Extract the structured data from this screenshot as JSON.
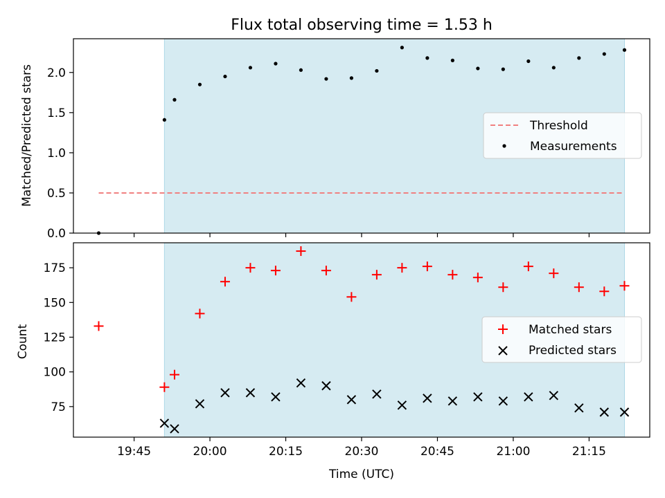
{
  "chart_data": [
    {
      "type": "scatter",
      "title": "Flux total observing time = 1.53 h",
      "ylabel": "Matched/Predicted stars",
      "xlabel": "",
      "xlim": [
        "19:33",
        "21:27"
      ],
      "ylim": [
        0,
        2.42
      ],
      "yticks": [
        "0.0",
        "0.5",
        "1.0",
        "1.5",
        "2.0"
      ],
      "grid": false,
      "legend_position": "center-right",
      "shaded_interval": [
        "19:51",
        "21:22"
      ],
      "shaded_color": "#add8e6",
      "threshold": {
        "name": "Threshold",
        "value": 0.5,
        "x": [
          "19:38",
          "21:22"
        ],
        "color": "#f08080",
        "style": "dashed"
      },
      "series": [
        {
          "name": "Measurements",
          "marker": "dot",
          "color": "#000000",
          "x": [
            "19:38",
            "19:51",
            "19:53",
            "19:58",
            "20:03",
            "20:08",
            "20:13",
            "20:18",
            "20:23",
            "20:28",
            "20:33",
            "20:38",
            "20:43",
            "20:48",
            "20:53",
            "20:58",
            "21:03",
            "21:08",
            "21:13",
            "21:18",
            "21:22"
          ],
          "y": [
            0.0,
            1.41,
            1.66,
            1.85,
            1.95,
            2.06,
            2.11,
            2.03,
            1.92,
            1.93,
            2.02,
            2.31,
            2.18,
            2.15,
            2.05,
            2.04,
            2.14,
            2.06,
            2.18,
            2.23,
            2.28
          ]
        }
      ]
    },
    {
      "type": "scatter",
      "title": "",
      "ylabel": "Count",
      "xlabel": "Time (UTC)",
      "xlim": [
        "19:33",
        "21:27"
      ],
      "ylim": [
        53,
        193
      ],
      "yticks": [
        "75",
        "100",
        "125",
        "150",
        "175"
      ],
      "xticks": [
        "19:45",
        "20:00",
        "20:15",
        "20:30",
        "20:45",
        "21:00",
        "21:15"
      ],
      "grid": false,
      "legend_position": "center-right",
      "shaded_interval": [
        "19:51",
        "21:22"
      ],
      "shaded_color": "#add8e6",
      "series": [
        {
          "name": "Matched stars",
          "marker": "plus",
          "color": "#ff0000",
          "x": [
            "19:38",
            "19:51",
            "19:53",
            "19:58",
            "20:03",
            "20:08",
            "20:13",
            "20:18",
            "20:23",
            "20:28",
            "20:33",
            "20:38",
            "20:43",
            "20:48",
            "20:53",
            "20:58",
            "21:03",
            "21:08",
            "21:13",
            "21:18",
            "21:22"
          ],
          "y": [
            133,
            89,
            98,
            142,
            165,
            175,
            173,
            187,
            173,
            154,
            170,
            175,
            176,
            170,
            168,
            161,
            176,
            171,
            161,
            158,
            162
          ]
        },
        {
          "name": "Predicted stars",
          "marker": "x",
          "color": "#000000",
          "x": [
            "19:51",
            "19:53",
            "19:58",
            "20:03",
            "20:08",
            "20:13",
            "20:18",
            "20:23",
            "20:28",
            "20:33",
            "20:38",
            "20:43",
            "20:48",
            "20:53",
            "20:58",
            "21:03",
            "21:08",
            "21:13",
            "21:18",
            "21:22"
          ],
          "y": [
            63,
            59,
            77,
            85,
            85,
            82,
            92,
            90,
            80,
            84,
            76,
            81,
            79,
            82,
            79,
            82,
            83,
            74,
            71,
            71
          ]
        }
      ]
    }
  ]
}
